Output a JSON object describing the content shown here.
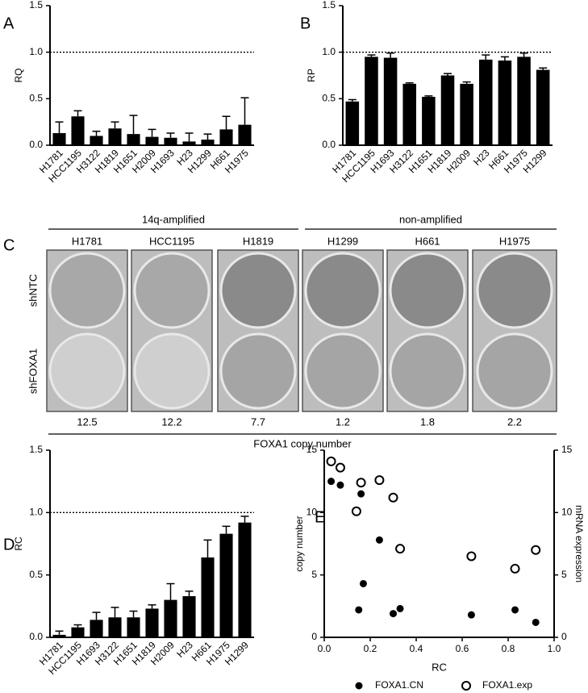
{
  "chart_data": [
    {
      "type": "bar",
      "panel": "A",
      "ylabel": "RQ",
      "categories": [
        "H1781",
        "HCC1195",
        "H3122",
        "H1819",
        "H1651",
        "H2009",
        "H1693",
        "H23",
        "H1299",
        "H661",
        "H1975"
      ],
      "values": [
        0.13,
        0.31,
        0.1,
        0.18,
        0.12,
        0.09,
        0.08,
        0.04,
        0.06,
        0.17,
        0.22
      ],
      "errors": [
        0.12,
        0.06,
        0.05,
        0.07,
        0.2,
        0.08,
        0.05,
        0.09,
        0.06,
        0.14,
        0.29
      ],
      "color": "#000000",
      "ylim": [
        0,
        1.5
      ],
      "yticks": [
        {
          "value": 0,
          "label": "0.0"
        },
        0.5,
        {
          "value": 1,
          "label": "1.0"
        },
        1.5
      ],
      "reference_line": 1.0
    },
    {
      "type": "bar",
      "panel": "B",
      "ylabel": "RP",
      "categories": [
        "H1781",
        "HCC1195",
        "H1693",
        "H3122",
        "H1651",
        "H1819",
        "H2009",
        "H23",
        "H661",
        "H1975",
        "H1299"
      ],
      "values": [
        0.47,
        0.95,
        0.94,
        0.66,
        0.52,
        0.75,
        0.66,
        0.92,
        0.91,
        0.95,
        0.81
      ],
      "errors": [
        0.02,
        0.02,
        0.05,
        0.01,
        0.01,
        0.02,
        0.02,
        0.05,
        0.04,
        0.04,
        0.02
      ],
      "color": "#000000",
      "ylim": [
        0,
        1.5
      ],
      "yticks": [
        {
          "value": 0,
          "label": "0.0"
        },
        0.5,
        {
          "value": 1,
          "label": "1.0"
        },
        1.5
      ],
      "reference_line": 1.0
    },
    {
      "type": "bar",
      "panel": "D",
      "ylabel": "RC",
      "categories": [
        "H1781",
        "HCC1195",
        "H1693",
        "H3122",
        "H1651",
        "H1819",
        "H2009",
        "H23",
        "H661",
        "H1975",
        "H1299"
      ],
      "values": [
        0.02,
        0.08,
        0.14,
        0.16,
        0.16,
        0.23,
        0.3,
        0.33,
        0.64,
        0.83,
        0.92
      ],
      "errors": [
        0.03,
        0.02,
        0.06,
        0.08,
        0.05,
        0.03,
        0.13,
        0.04,
        0.14,
        0.06,
        0.05
      ],
      "color": "#000000",
      "ylim": [
        0,
        1.5
      ],
      "yticks": [
        {
          "value": 0,
          "label": "0.0"
        },
        0.5,
        {
          "value": 1,
          "label": "1.0"
        },
        1.5
      ],
      "reference_line": 1.0
    },
    {
      "type": "scatter",
      "panel": "E",
      "xlabel": "RC",
      "ylabel": "copy number",
      "y2label": "mRNA expression",
      "xlim": [
        0,
        1
      ],
      "xticks": [
        {
          "value": 0,
          "label": "0.0"
        },
        0.2,
        0.4,
        0.6,
        0.8,
        {
          "value": 1,
          "label": "1.0"
        }
      ],
      "ylim": [
        0,
        15
      ],
      "yticks": [
        0,
        5,
        10,
        15
      ],
      "y2lim": [
        0,
        15
      ],
      "y2ticks": [
        0,
        5,
        10,
        15
      ],
      "series": [
        {
          "name": "FOXA1.CN",
          "color": "#000000",
          "marker": "filled",
          "x": [
            0.03,
            0.07,
            0.15,
            0.16,
            0.17,
            0.24,
            0.3,
            0.33,
            0.64,
            0.83,
            0.92
          ],
          "values": [
            12.5,
            12.2,
            2.2,
            11.5,
            4.3,
            7.8,
            1.9,
            2.3,
            1.8,
            2.2,
            1.2
          ]
        },
        {
          "name": "FOXA1.exp",
          "color": "#000000",
          "marker": "open",
          "axis": "y2",
          "x": [
            0.03,
            0.07,
            0.14,
            0.16,
            0.24,
            0.3,
            0.33,
            0.64,
            0.83,
            0.92
          ],
          "values": [
            14.1,
            13.6,
            10.1,
            12.4,
            12.6,
            11.2,
            7.1,
            6.5,
            5.5,
            7.0
          ]
        }
      ]
    }
  ],
  "panel_c": {
    "label": "C",
    "groups": [
      "14q-amplified",
      "non-amplified"
    ],
    "columns": [
      {
        "name": "H1781",
        "copy_number": 12.5
      },
      {
        "name": "HCC1195",
        "copy_number": 12.2
      },
      {
        "name": "H1819",
        "copy_number": 7.7
      },
      {
        "name": "H1299",
        "copy_number": 1.2
      },
      {
        "name": "H661",
        "copy_number": 1.8
      },
      {
        "name": "H1975",
        "copy_number": 2.2
      }
    ],
    "rows": [
      "shNTC",
      "shFOXA1"
    ],
    "axis_label": "FOXA1 copy number"
  }
}
